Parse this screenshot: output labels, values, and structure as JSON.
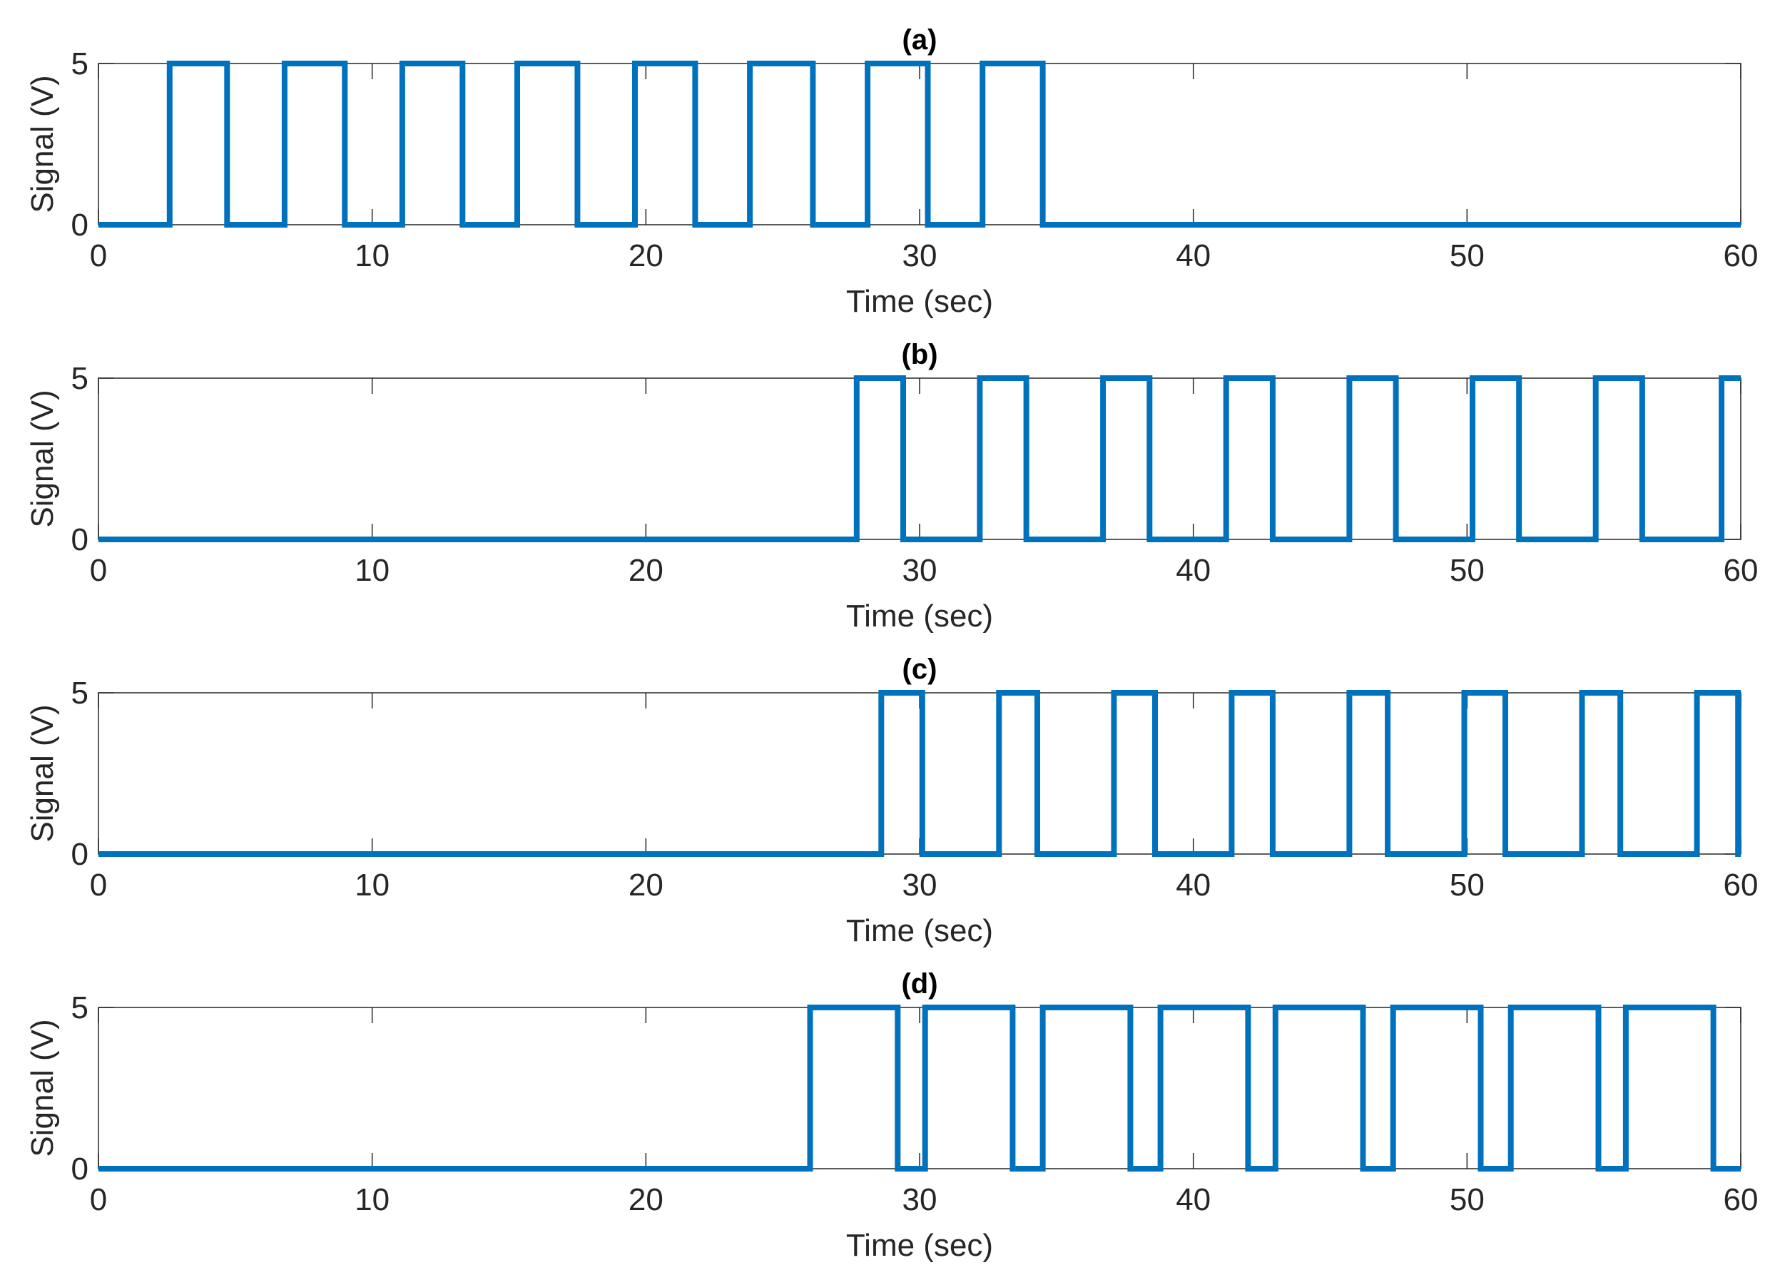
{
  "chart_data": [
    {
      "type": "line",
      "title": "(a)",
      "xlabel": "Time (sec)",
      "ylabel": "Signal (V)",
      "xlim": [
        0,
        60
      ],
      "ylim": [
        0,
        5
      ],
      "xticks": [
        "0",
        "10",
        "20",
        "30",
        "40",
        "50",
        "60"
      ],
      "yticks": [
        "0",
        "5"
      ],
      "line_color": "#0072BD",
      "series": [
        {
          "x": [
            0,
            2.6,
            2.6,
            4.7,
            4.7,
            6.8,
            6.8,
            9.0,
            9.0,
            11.1,
            11.1,
            13.3,
            13.3,
            15.3,
            15.3,
            17.5,
            17.5,
            19.6,
            19.6,
            21.8,
            21.8,
            23.8,
            23.8,
            26.1,
            26.1,
            28.1,
            28.1,
            30.3,
            30.3,
            32.3,
            32.3,
            34.5,
            34.5,
            60
          ],
          "y": [
            0,
            0,
            5,
            5,
            0,
            0,
            5,
            5,
            0,
            0,
            5,
            5,
            0,
            0,
            5,
            5,
            0,
            0,
            5,
            5,
            0,
            0,
            5,
            5,
            0,
            0,
            5,
            5,
            0,
            0,
            5,
            5,
            0,
            0
          ]
        }
      ]
    },
    {
      "type": "line",
      "title": "(b)",
      "xlabel": "Time (sec)",
      "ylabel": "Signal (V)",
      "xlim": [
        0,
        60
      ],
      "ylim": [
        0,
        5
      ],
      "xticks": [
        "0",
        "10",
        "20",
        "30",
        "40",
        "50",
        "60"
      ],
      "yticks": [
        "0",
        "5"
      ],
      "line_color": "#0072BD",
      "series": [
        {
          "x": [
            0,
            27.7,
            27.7,
            29.4,
            29.4,
            32.2,
            32.2,
            33.9,
            33.9,
            36.7,
            36.7,
            38.4,
            38.4,
            41.2,
            41.2,
            42.9,
            42.9,
            45.7,
            45.7,
            47.4,
            47.4,
            50.2,
            50.2,
            51.9,
            51.9,
            54.7,
            54.7,
            56.4,
            56.4,
            59.3,
            59.3,
            60
          ],
          "y": [
            0,
            0,
            5,
            5,
            0,
            0,
            5,
            5,
            0,
            0,
            5,
            5,
            0,
            0,
            5,
            5,
            0,
            0,
            5,
            5,
            0,
            0,
            5,
            5,
            0,
            0,
            5,
            5,
            0,
            0,
            5,
            5
          ]
        }
      ]
    },
    {
      "type": "line",
      "title": "(c)",
      "xlabel": "Time (sec)",
      "ylabel": "Signal (V)",
      "xlim": [
        0,
        60
      ],
      "ylim": [
        0,
        5
      ],
      "xticks": [
        "0",
        "10",
        "20",
        "30",
        "40",
        "50",
        "60"
      ],
      "yticks": [
        "0",
        "5"
      ],
      "line_color": "#0072BD",
      "series": [
        {
          "x": [
            0,
            28.6,
            28.6,
            30.1,
            30.1,
            32.9,
            32.9,
            34.3,
            34.3,
            37.1,
            37.1,
            38.6,
            38.6,
            41.4,
            41.4,
            42.9,
            42.9,
            45.7,
            45.7,
            47.1,
            47.1,
            49.9,
            49.9,
            51.4,
            51.4,
            54.2,
            54.2,
            55.6,
            55.6,
            58.4,
            58.4,
            59.9,
            59.9,
            60
          ],
          "y": [
            0,
            0,
            5,
            5,
            0,
            0,
            5,
            5,
            0,
            0,
            5,
            5,
            0,
            0,
            5,
            5,
            0,
            0,
            5,
            5,
            0,
            0,
            5,
            5,
            0,
            0,
            5,
            5,
            0,
            0,
            5,
            5,
            0,
            0
          ]
        }
      ]
    },
    {
      "type": "line",
      "title": "(d)",
      "xlabel": "Time (sec)",
      "ylabel": "Signal (V)",
      "xlim": [
        0,
        60
      ],
      "ylim": [
        0,
        5
      ],
      "xticks": [
        "0",
        "10",
        "20",
        "30",
        "40",
        "50",
        "60"
      ],
      "yticks": [
        "0",
        "5"
      ],
      "line_color": "#0072BD",
      "series": [
        {
          "x": [
            0,
            26.0,
            26.0,
            29.2,
            29.2,
            30.2,
            30.2,
            33.4,
            33.4,
            34.5,
            34.5,
            37.7,
            37.7,
            38.8,
            38.8,
            42.0,
            42.0,
            43.0,
            43.0,
            46.2,
            46.2,
            47.3,
            47.3,
            50.5,
            50.5,
            51.6,
            51.6,
            54.8,
            54.8,
            55.8,
            55.8,
            59.0,
            59.0,
            60
          ],
          "y": [
            0,
            0,
            5,
            5,
            0,
            0,
            5,
            5,
            0,
            0,
            5,
            5,
            0,
            0,
            5,
            5,
            0,
            0,
            5,
            5,
            0,
            0,
            5,
            5,
            0,
            0,
            5,
            5,
            0,
            0,
            5,
            5,
            0,
            0
          ]
        }
      ]
    }
  ]
}
